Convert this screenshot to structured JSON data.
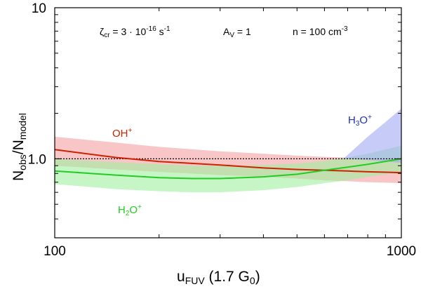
{
  "chart_data": {
    "type": "line",
    "xscale": "log",
    "yscale": "log",
    "xlim": [
      100,
      1000
    ],
    "ylim": [
      0.3,
      10
    ],
    "xticks": [
      100,
      1000
    ],
    "xtick_labels": [
      "100",
      "1000"
    ],
    "yticks": [
      1.0,
      10
    ],
    "ytick_labels": [
      "1.0",
      "10"
    ],
    "xlabel": {
      "main": "u",
      "sub": "FUV",
      "rest": " (1.7 G",
      "sub2": "0",
      "close": ")"
    },
    "ylabel": {
      "n1": "N",
      "s1": "obs",
      "mid": "/N",
      "s2": "model"
    },
    "annotations": {
      "zeta": {
        "sym": "ζ",
        "sub": "cr",
        "eq": " = 3 · 10",
        "sup": "-16",
        "unit": " s",
        "unit_sup": "-1"
      },
      "av": {
        "sym": "A",
        "sub": "V",
        "eq": " = 1"
      },
      "density": {
        "text": "n = 100 cm",
        "sup": "-3"
      }
    },
    "reference_line": 1.0,
    "series": [
      {
        "name": "OH+",
        "label": {
          "base": "OH",
          "sup": "+"
        },
        "color": "#cc2200",
        "band_color": "#f4a0a0",
        "x": [
          100,
          150,
          200,
          300,
          400,
          500,
          600,
          700,
          800,
          900,
          1000
        ],
        "y": [
          1.15,
          1.02,
          0.96,
          0.91,
          0.87,
          0.85,
          0.84,
          0.83,
          0.82,
          0.815,
          0.81
        ],
        "lower": [
          0.9,
          0.85,
          0.82,
          0.78,
          0.76,
          0.74,
          0.72,
          0.71,
          0.7,
          0.695,
          0.69
        ],
        "upper": [
          1.4,
          1.28,
          1.2,
          1.12,
          1.08,
          1.05,
          1.03,
          1.02,
          1.01,
          1.005,
          1.0
        ]
      },
      {
        "name": "H2O+",
        "label": {
          "base": "H",
          "sub": "2",
          "rest": "O",
          "sup": "+"
        },
        "color": "#22cc22",
        "band_color": "#a0f0a0",
        "x": [
          100,
          150,
          200,
          250,
          300,
          400,
          500,
          600,
          700,
          800,
          1000
        ],
        "y": [
          0.83,
          0.78,
          0.75,
          0.74,
          0.74,
          0.76,
          0.79,
          0.84,
          0.88,
          0.92,
          1.0
        ],
        "lower": [
          0.68,
          0.63,
          0.61,
          0.6,
          0.6,
          0.62,
          0.65,
          0.69,
          0.72,
          0.76,
          0.82
        ],
        "upper": [
          1.0,
          0.95,
          0.92,
          0.9,
          0.9,
          0.91,
          0.93,
          0.97,
          1.02,
          1.08,
          1.22
        ]
      },
      {
        "name": "H3O+",
        "label": {
          "base": "H",
          "sub": "3",
          "rest": "O",
          "sup": "+"
        },
        "color": "#2233aa",
        "band_color": "#a0a8f4",
        "x": [
          680,
          700,
          800,
          900,
          1000
        ],
        "lower": [
          1.0,
          1.0,
          0.98,
          0.96,
          0.94
        ],
        "upper": [
          1.0,
          1.06,
          1.4,
          1.75,
          2.15
        ]
      }
    ]
  }
}
